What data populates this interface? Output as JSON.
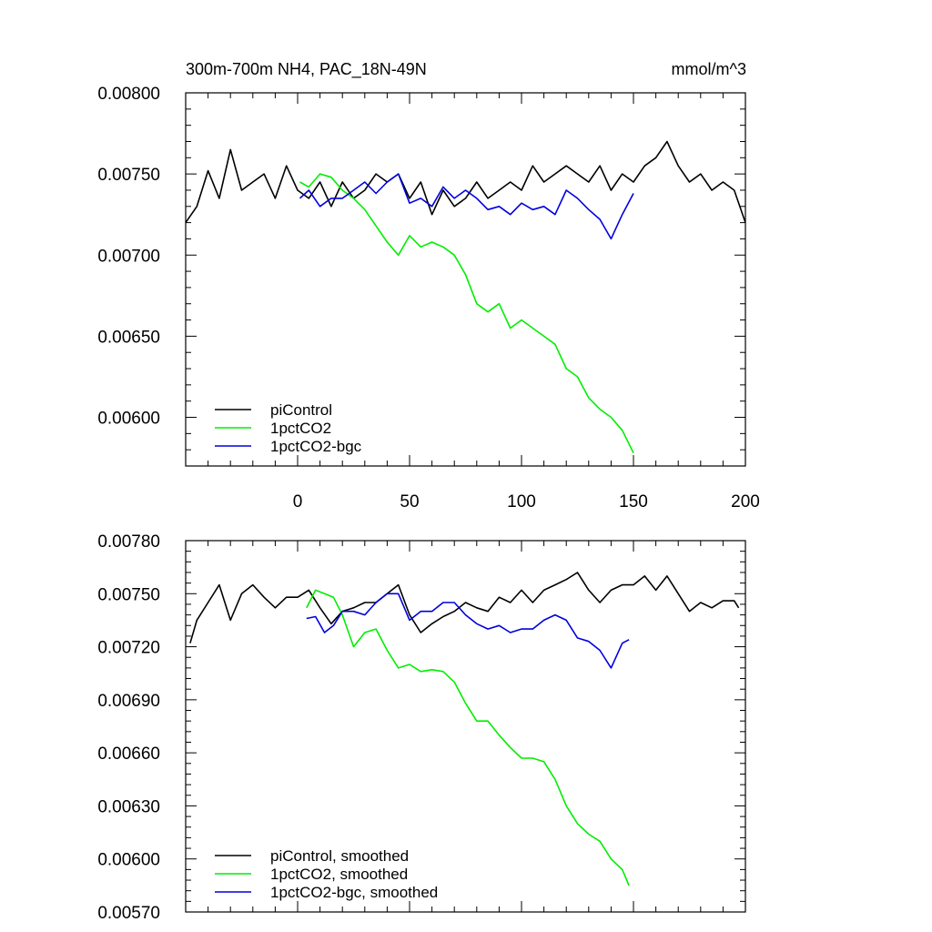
{
  "chart_data": [
    {
      "type": "line",
      "title": "300m-700m NH4, PAC_18N-49N",
      "units": "mmol/m^3",
      "xlim": [
        -50,
        200
      ],
      "ylim": [
        0.0057,
        0.008
      ],
      "x_ticks": [
        "0",
        "50",
        "100",
        "150",
        "200"
      ],
      "y_ticks": [
        "0.00800",
        "0.00750",
        "0.00700",
        "0.00650",
        "0.00600"
      ],
      "legend_position": "bottom-left",
      "series": [
        {
          "name": "piControl",
          "color": "#000000",
          "x": [
            -50,
            -45,
            -40,
            -35,
            -30,
            -25,
            -20,
            -15,
            -10,
            -5,
            0,
            5,
            10,
            15,
            20,
            25,
            30,
            35,
            40,
            45,
            50,
            55,
            60,
            65,
            70,
            75,
            80,
            85,
            90,
            95,
            100,
            105,
            110,
            115,
            120,
            125,
            130,
            135,
            140,
            145,
            150,
            155,
            160,
            165,
            170,
            175,
            180,
            185,
            190,
            195,
            200
          ],
          "y": [
            0.0072,
            0.0073,
            0.00752,
            0.00735,
            0.00765,
            0.0074,
            0.00745,
            0.0075,
            0.00735,
            0.00755,
            0.0074,
            0.00735,
            0.00745,
            0.0073,
            0.00745,
            0.00735,
            0.0074,
            0.0075,
            0.00745,
            0.0075,
            0.00735,
            0.00745,
            0.00725,
            0.0074,
            0.0073,
            0.00735,
            0.00745,
            0.00735,
            0.0074,
            0.00745,
            0.0074,
            0.00755,
            0.00745,
            0.0075,
            0.00755,
            0.0075,
            0.00745,
            0.00755,
            0.0074,
            0.0075,
            0.00745,
            0.00755,
            0.0076,
            0.0077,
            0.00755,
            0.00745,
            0.0075,
            0.0074,
            0.00745,
            0.0074,
            0.0072
          ]
        },
        {
          "name": "1pctCO2",
          "color": "#00ee00",
          "x": [
            1,
            5,
            10,
            15,
            20,
            25,
            30,
            35,
            40,
            45,
            50,
            55,
            60,
            65,
            70,
            75,
            80,
            85,
            90,
            95,
            100,
            105,
            110,
            115,
            120,
            125,
            130,
            135,
            140,
            145,
            150
          ],
          "y": [
            0.00745,
            0.00742,
            0.0075,
            0.00748,
            0.0074,
            0.00735,
            0.00728,
            0.00718,
            0.00708,
            0.007,
            0.00712,
            0.00705,
            0.00708,
            0.00705,
            0.007,
            0.00688,
            0.0067,
            0.00665,
            0.0067,
            0.00655,
            0.0066,
            0.00655,
            0.0065,
            0.00645,
            0.0063,
            0.00625,
            0.00612,
            0.00605,
            0.006,
            0.00592,
            0.00578
          ]
        },
        {
          "name": "1pctCO2-bgc",
          "color": "#0000dd",
          "x": [
            1,
            5,
            10,
            15,
            20,
            25,
            30,
            35,
            40,
            45,
            50,
            55,
            60,
            65,
            70,
            75,
            80,
            85,
            90,
            95,
            100,
            105,
            110,
            115,
            120,
            125,
            130,
            135,
            140,
            145,
            150
          ],
          "y": [
            0.00735,
            0.0074,
            0.0073,
            0.00735,
            0.00735,
            0.0074,
            0.00745,
            0.00738,
            0.00745,
            0.0075,
            0.00732,
            0.00735,
            0.0073,
            0.00742,
            0.00735,
            0.0074,
            0.00735,
            0.00728,
            0.0073,
            0.00725,
            0.00732,
            0.00728,
            0.0073,
            0.00725,
            0.0074,
            0.00735,
            0.00728,
            0.00722,
            0.0071,
            0.00725,
            0.00738
          ]
        }
      ]
    },
    {
      "type": "line",
      "xlim": [
        -50,
        200
      ],
      "ylim": [
        0.0057,
        0.0078
      ],
      "y_ticks": [
        "0.00780",
        "0.00750",
        "0.00720",
        "0.00690",
        "0.00660",
        "0.00630",
        "0.00600",
        "0.00570"
      ],
      "legend_position": "bottom-left",
      "series": [
        {
          "name": "piControl, smoothed",
          "color": "#000000",
          "x": [
            -48,
            -45,
            -40,
            -35,
            -30,
            -25,
            -20,
            -15,
            -10,
            -5,
            0,
            5,
            10,
            15,
            20,
            25,
            30,
            35,
            40,
            45,
            50,
            55,
            60,
            65,
            70,
            75,
            80,
            85,
            90,
            95,
            100,
            105,
            110,
            115,
            120,
            125,
            130,
            135,
            140,
            145,
            150,
            155,
            160,
            165,
            170,
            175,
            180,
            185,
            190,
            195,
            197
          ],
          "y": [
            0.00722,
            0.00735,
            0.00745,
            0.00755,
            0.00735,
            0.0075,
            0.00755,
            0.00748,
            0.00742,
            0.00748,
            0.00748,
            0.00752,
            0.00742,
            0.00733,
            0.0074,
            0.00742,
            0.00745,
            0.00745,
            0.0075,
            0.00755,
            0.00738,
            0.00728,
            0.00733,
            0.00737,
            0.0074,
            0.00745,
            0.00742,
            0.0074,
            0.00748,
            0.00745,
            0.00752,
            0.00745,
            0.00752,
            0.00755,
            0.00758,
            0.00762,
            0.00752,
            0.00745,
            0.00752,
            0.00755,
            0.00755,
            0.0076,
            0.00752,
            0.0076,
            0.0075,
            0.0074,
            0.00745,
            0.00742,
            0.00746,
            0.00746,
            0.00742
          ]
        },
        {
          "name": "1pctCO2, smoothed",
          "color": "#00ee00",
          "x": [
            4,
            8,
            12,
            16,
            20,
            25,
            30,
            35,
            40,
            45,
            50,
            55,
            60,
            65,
            70,
            75,
            80,
            85,
            90,
            95,
            100,
            105,
            110,
            115,
            120,
            125,
            130,
            135,
            140,
            145,
            148
          ],
          "y": [
            0.00742,
            0.00752,
            0.0075,
            0.00748,
            0.00738,
            0.0072,
            0.00728,
            0.0073,
            0.00718,
            0.00708,
            0.0071,
            0.00706,
            0.00707,
            0.00706,
            0.007,
            0.00688,
            0.00678,
            0.00678,
            0.0067,
            0.00663,
            0.00657,
            0.00657,
            0.00655,
            0.00645,
            0.0063,
            0.0062,
            0.00614,
            0.0061,
            0.006,
            0.00594,
            0.00585
          ]
        },
        {
          "name": "1pctCO2-bgc, smoothed",
          "color": "#0000dd",
          "x": [
            4,
            8,
            12,
            16,
            20,
            25,
            30,
            35,
            40,
            45,
            50,
            55,
            60,
            65,
            70,
            75,
            80,
            85,
            90,
            95,
            100,
            105,
            110,
            115,
            120,
            125,
            130,
            135,
            140,
            145,
            148
          ],
          "y": [
            0.00736,
            0.00737,
            0.00728,
            0.00732,
            0.0074,
            0.0074,
            0.00738,
            0.00745,
            0.0075,
            0.0075,
            0.00735,
            0.0074,
            0.0074,
            0.00745,
            0.00745,
            0.00738,
            0.00733,
            0.0073,
            0.00732,
            0.00728,
            0.0073,
            0.0073,
            0.00735,
            0.00738,
            0.00735,
            0.00725,
            0.00723,
            0.00718,
            0.00708,
            0.00722,
            0.00724
          ]
        }
      ]
    }
  ]
}
